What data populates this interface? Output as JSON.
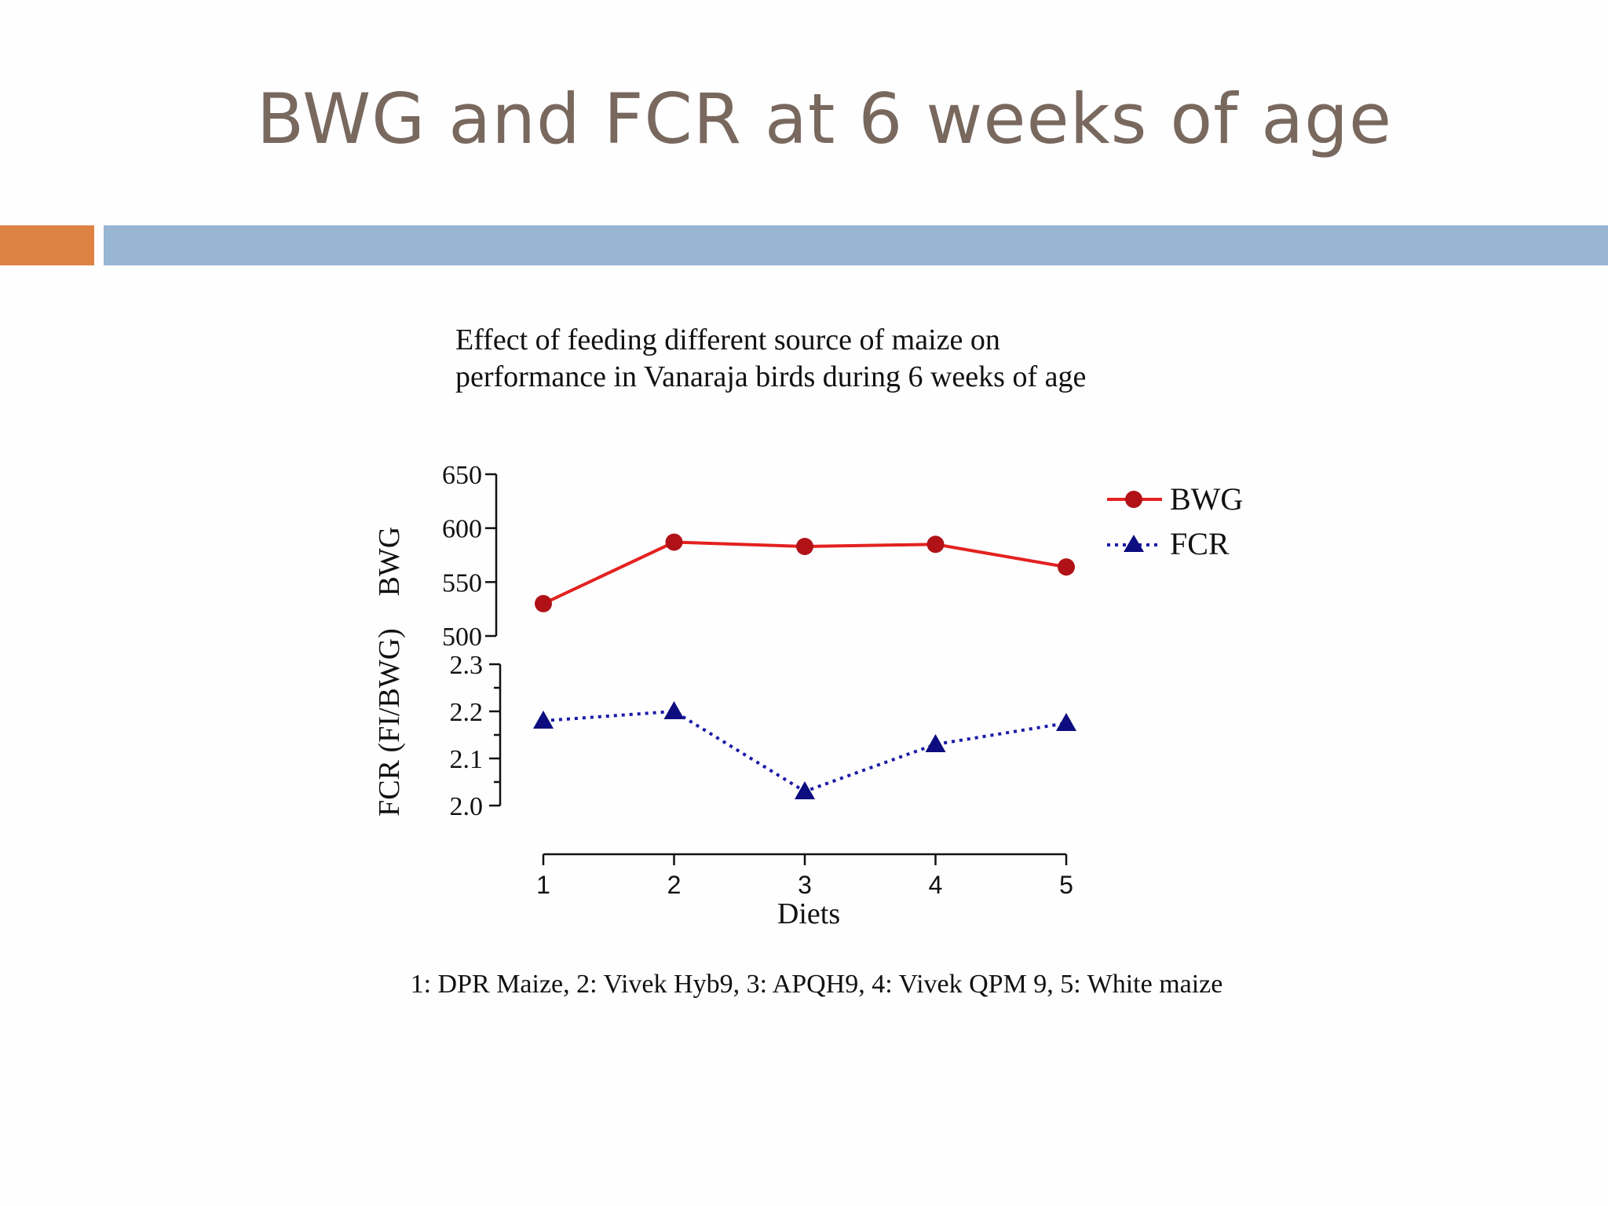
{
  "slide": {
    "title": "BWG and FCR at 6 weeks of age",
    "accent_colors": {
      "orange": "#de8244",
      "blue": "#98b5d2",
      "title": "#78685e"
    }
  },
  "chart_data": {
    "type": "line",
    "title_line1": "Effect of feeding different source of maize on",
    "title_line2": "performance in Vanaraja birds during 6 weeks of age",
    "xlabel": "Diets",
    "ylabel_bwg": "BWG",
    "ylabel_fcr": "FCR (FI/BWG)",
    "x": [
      1,
      2,
      3,
      4,
      5
    ],
    "x_tick_labels": [
      "1",
      "2",
      "3",
      "4",
      "5"
    ],
    "bwg_axis": {
      "ylim": [
        500,
        650
      ],
      "ticks": [
        "500",
        "550",
        "600",
        "650"
      ]
    },
    "fcr_axis": {
      "ylim": [
        2.0,
        2.3
      ],
      "ticks": [
        "2.0",
        "2.1",
        "2.2",
        "2.3"
      ]
    },
    "series": [
      {
        "name": "BWG",
        "axis": "bwg",
        "values": [
          530,
          587,
          583,
          585,
          564
        ],
        "color": "#e3211f",
        "marker": "circle",
        "marker_color": "#b01217",
        "line_style": "solid"
      },
      {
        "name": "FCR",
        "axis": "fcr",
        "values": [
          2.18,
          2.2,
          2.03,
          2.13,
          2.175
        ],
        "color": "#1a1aa8",
        "marker": "triangle",
        "marker_color": "#0d0d80",
        "line_style": "dotted"
      }
    ],
    "legend_position": "top-right",
    "grid": false,
    "footnote": "1: DPR Maize, 2: Vivek Hyb9, 3: APQH9, 4: Vivek QPM 9, 5: White maize"
  }
}
